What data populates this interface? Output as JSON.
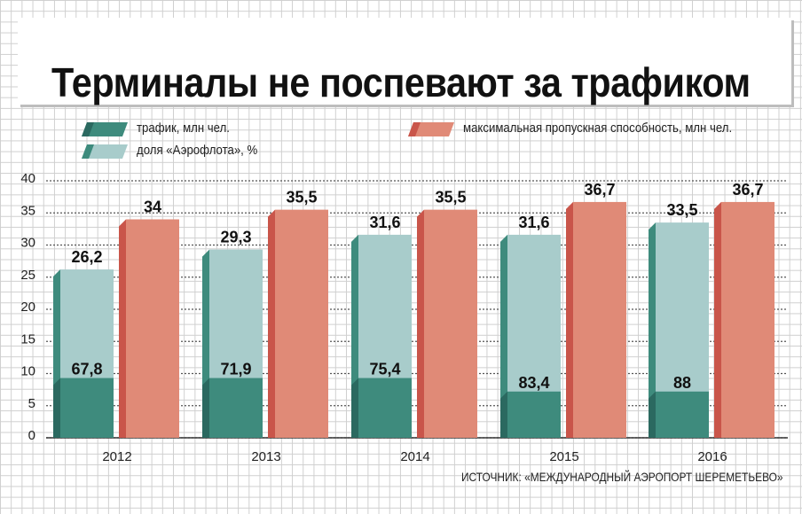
{
  "title": "Терминалы не поспевают за трафиком",
  "source": "ИСТОЧНИК: «МЕЖДУНАРОДНЫЙ АЭРОПОРТ ШЕРЕМЕТЬЕВО»",
  "legend": {
    "traffic": "трафик, млн чел.",
    "share": "доля «Аэрофлота», %",
    "capacity": "максимальная пропускная способность, млн чел."
  },
  "colors": {
    "traffic": "#3e8b7d",
    "traffic_dark": "#2b6960",
    "share": "#a8cccb",
    "capacity": "#e08a77",
    "capacity_dark": "#c9554a"
  },
  "chart_data": {
    "type": "bar",
    "categories": [
      "2012",
      "2013",
      "2014",
      "2015",
      "2016"
    ],
    "series": [
      {
        "name": "трафик, млн чел.",
        "values": [
          26.2,
          29.3,
          31.6,
          31.6,
          33.5
        ],
        "labels": [
          "26,2",
          "29,3",
          "31,6",
          "31,6",
          "33,5"
        ]
      },
      {
        "name": "доля «Аэрофлота», %",
        "values": [
          67.8,
          71.9,
          75.4,
          83.4,
          88
        ],
        "labels": [
          "67,8",
          "71,9",
          "75,4",
          "83,4",
          "88"
        ]
      },
      {
        "name": "максимальная пропускная способность, млн чел.",
        "values": [
          34,
          35.5,
          35.5,
          36.7,
          36.7
        ],
        "labels": [
          "34",
          "35,5",
          "35,5",
          "36,7",
          "36,7"
        ]
      }
    ],
    "yticks": [
      0,
      5,
      10,
      15,
      20,
      25,
      30,
      35,
      40
    ],
    "ylim": [
      0,
      40
    ],
    "grid": true,
    "legend_position": "top"
  }
}
